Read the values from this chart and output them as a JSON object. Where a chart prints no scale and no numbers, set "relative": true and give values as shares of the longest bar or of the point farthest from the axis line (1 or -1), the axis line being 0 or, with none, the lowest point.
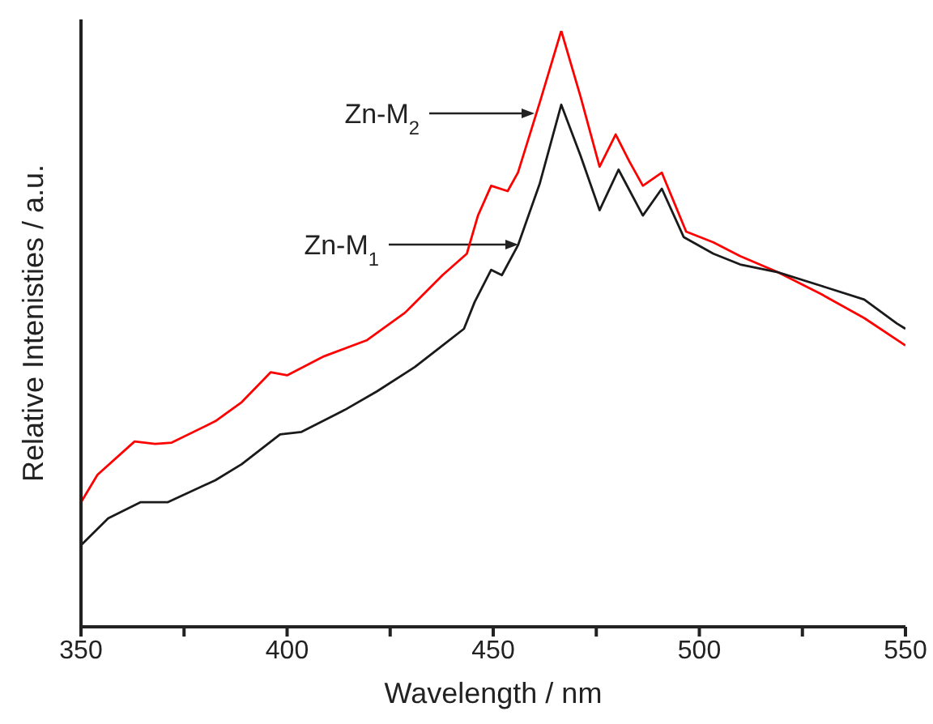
{
  "chart_data": {
    "type": "line",
    "relative": true,
    "xlabel": "Wavelength / nm",
    "ylabel": "Relative Intenisties / a.u.",
    "xlim": [
      350,
      550
    ],
    "xticks": [
      350,
      {
        "value": 375,
        "label": null
      },
      400,
      {
        "value": 425,
        "label": null
      },
      450,
      {
        "value": 475,
        "label": null
      },
      500,
      {
        "value": 525,
        "label": null
      },
      550
    ],
    "grid": false,
    "marker": "none",
    "line_style": "solid",
    "annotations": [
      "Zn-M$_{2}$",
      "Zn-M$_{1}$"
    ],
    "series": [
      {
        "color": "#ff0000",
        "x": [
          350,
          354,
          363,
          368,
          372,
          382.6,
          389,
          396,
          400,
          409,
          419.4,
          428.6,
          437.7,
          443.6,
          446.3,
          449.5,
          453.5,
          456,
          461.3,
          466.5,
          471.2,
          475.8,
          479.7,
          483,
          486.3,
          490.9,
          496.8,
          503.4,
          509.9,
          519,
          529.6,
          540,
          550
        ],
        "values": [
          0.209,
          0.255,
          0.311,
          0.307,
          0.309,
          0.345,
          0.377,
          0.427,
          0.422,
          0.454,
          0.481,
          0.527,
          0.59,
          0.626,
          0.69,
          0.74,
          0.731,
          0.762,
          0.88,
          1,
          0.889,
          0.772,
          0.826,
          0.781,
          0.74,
          0.762,
          0.663,
          0.645,
          0.622,
          0.595,
          0.558,
          0.518,
          0.472
        ]
      },
      {
        "color": "#1a1a1a",
        "x": [
          350,
          356.6,
          364.4,
          371,
          382.6,
          389,
          398.3,
          403.5,
          414,
          421.8,
          431,
          437.7,
          442.9,
          445.5,
          449.5,
          452.1,
          456,
          461.3,
          466.5,
          471.2,
          475.8,
          480.4,
          486.3,
          490.9,
          496.2,
          503.4,
          509.9,
          519,
          529.6,
          540,
          547.9,
          550
        ],
        "values": [
          0.137,
          0.182,
          0.209,
          0.209,
          0.246,
          0.273,
          0.323,
          0.327,
          0.364,
          0.395,
          0.436,
          0.472,
          0.5,
          0.545,
          0.599,
          0.59,
          0.64,
          0.744,
          0.876,
          0.79,
          0.699,
          0.767,
          0.69,
          0.735,
          0.654,
          0.626,
          0.608,
          0.595,
          0.572,
          0.549,
          0.509,
          0.5
        ]
      }
    ]
  }
}
